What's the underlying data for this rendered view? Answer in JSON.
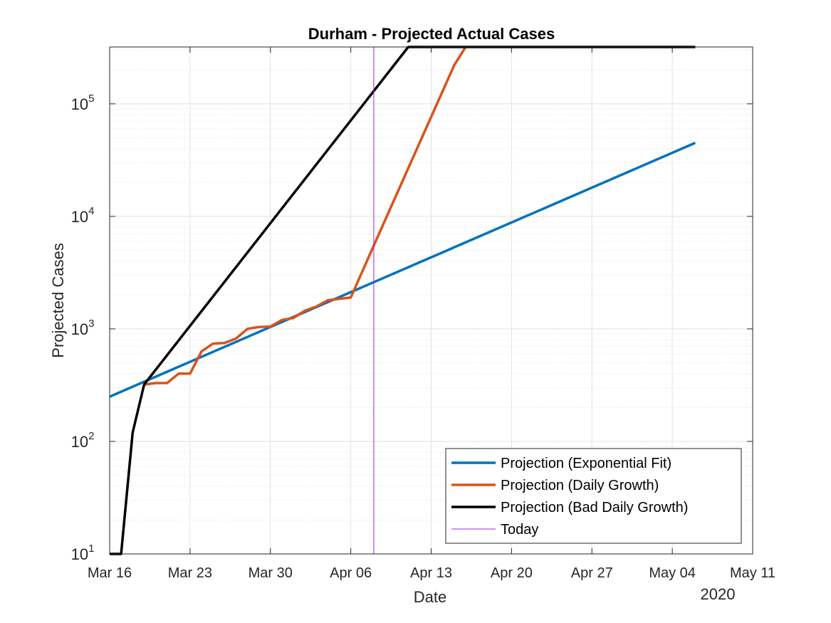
{
  "chart_data": {
    "type": "line",
    "title": "Durham - Projected Actual Cases",
    "xlabel": "Date",
    "ylabel": "Projected Cases",
    "year_label": "2020",
    "yscale": "log",
    "ylim": [
      10,
      320000
    ],
    "xlim": [
      "2020-03-16",
      "2020-05-11"
    ],
    "grid": true,
    "minor_grid": true,
    "legend_position": "bottom-right",
    "x_ticks": [
      {
        "date": "2020-03-16",
        "label": "Mar 16"
      },
      {
        "date": "2020-03-23",
        "label": "Mar 23"
      },
      {
        "date": "2020-03-30",
        "label": "Mar 30"
      },
      {
        "date": "2020-04-06",
        "label": "Apr 06"
      },
      {
        "date": "2020-04-13",
        "label": "Apr 13"
      },
      {
        "date": "2020-04-20",
        "label": "Apr 20"
      },
      {
        "date": "2020-04-27",
        "label": "Apr 27"
      },
      {
        "date": "2020-05-04",
        "label": "May 04"
      },
      {
        "date": "2020-05-11",
        "label": "May 11"
      }
    ],
    "y_ticks": [
      {
        "value": 10,
        "base": "10",
        "exp": "1"
      },
      {
        "value": 100,
        "base": "10",
        "exp": "2"
      },
      {
        "value": 1000,
        "base": "10",
        "exp": "3"
      },
      {
        "value": 10000,
        "base": "10",
        "exp": "4"
      },
      {
        "value": 100000,
        "base": "10",
        "exp": "5"
      }
    ],
    "series": [
      {
        "name": "Projection (Exponential Fit)",
        "color": "#0072BD",
        "width": 3.5,
        "x": [
          "2020-03-16",
          "2020-05-06"
        ],
        "y": [
          250,
          45000
        ]
      },
      {
        "name": "Projection (Daily Growth)",
        "color": "#D95319",
        "width": 3.5,
        "x": [
          "2020-03-19",
          "2020-03-20",
          "2020-03-21",
          "2020-03-22",
          "2020-03-23",
          "2020-03-24",
          "2020-03-25",
          "2020-03-26",
          "2020-03-27",
          "2020-03-28",
          "2020-03-29",
          "2020-03-30",
          "2020-03-31",
          "2020-04-01",
          "2020-04-02",
          "2020-04-03",
          "2020-04-04",
          "2020-04-05",
          "2020-04-06",
          "2020-04-08",
          "2020-04-15",
          "2020-04-16"
        ],
        "y": [
          320,
          330,
          330,
          400,
          400,
          630,
          740,
          750,
          820,
          1000,
          1040,
          1050,
          1200,
          1250,
          1450,
          1580,
          1800,
          1850,
          1900,
          5500,
          220000,
          320000
        ]
      },
      {
        "name": "Projection (Bad Daily Growth)",
        "color": "#000000",
        "width": 3.5,
        "x": [
          "2020-03-16",
          "2020-03-17",
          "2020-03-18",
          "2020-03-19",
          "2020-04-11",
          "2020-04-12",
          "2020-05-06"
        ],
        "y": [
          10,
          10,
          120,
          320,
          320000,
          320000,
          320000
        ]
      },
      {
        "name": "Today",
        "color": "#A020F0",
        "width": 1,
        "x": [
          "2020-04-08",
          "2020-04-08"
        ],
        "y": [
          10,
          320000
        ]
      }
    ]
  }
}
